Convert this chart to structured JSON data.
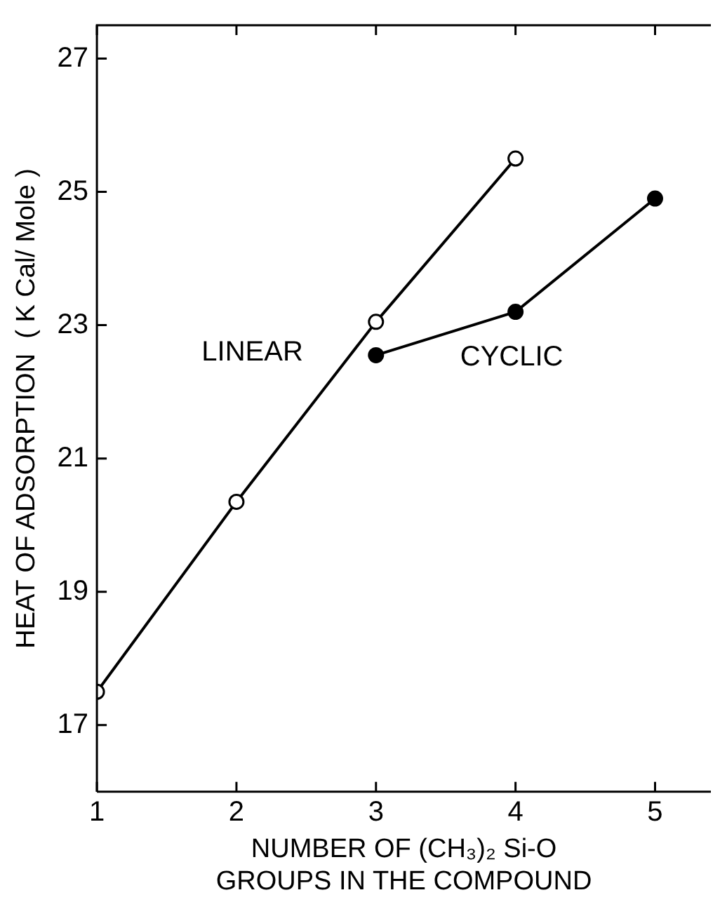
{
  "chart_data": {
    "type": "line",
    "xlabel": "NUMBER OF (CH₃)₂ Si-O\nGROUPS IN THE COMPOUND",
    "ylabel": "HEAT OF ADSORPTION  ( K Cal/ Mole )",
    "xlim": [
      1,
      5.4
    ],
    "xticks": [
      1,
      2,
      3,
      4,
      5
    ],
    "ylim": [
      16,
      27.5
    ],
    "yticks": [
      17,
      19,
      21,
      23,
      25,
      27
    ],
    "grid": false,
    "legend": false,
    "marker": "circle",
    "line_style": "solid",
    "series": [
      {
        "name": "LINEAR",
        "color": "#000000",
        "x": [
          1,
          2,
          3,
          4
        ],
        "values": [
          17.5,
          20.35,
          23.05,
          25.5
        ]
      },
      {
        "name": "CYCLIC",
        "color": "#000000",
        "x": [
          3,
          4,
          5
        ],
        "values": [
          22.55,
          23.2,
          24.9
        ]
      }
    ]
  }
}
